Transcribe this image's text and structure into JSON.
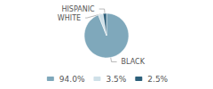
{
  "chart_data": {
    "type": "pie",
    "categories": [
      "BLACK",
      "WHITE",
      "HISPANIC"
    ],
    "values": [
      94.0,
      3.5,
      2.5
    ],
    "value_labels": [
      "94.0%",
      "3.5%",
      "2.5%"
    ],
    "colors": [
      "#7fa8bb",
      "#cfe0e8",
      "#2d5f7a"
    ],
    "legend": "bottom"
  }
}
